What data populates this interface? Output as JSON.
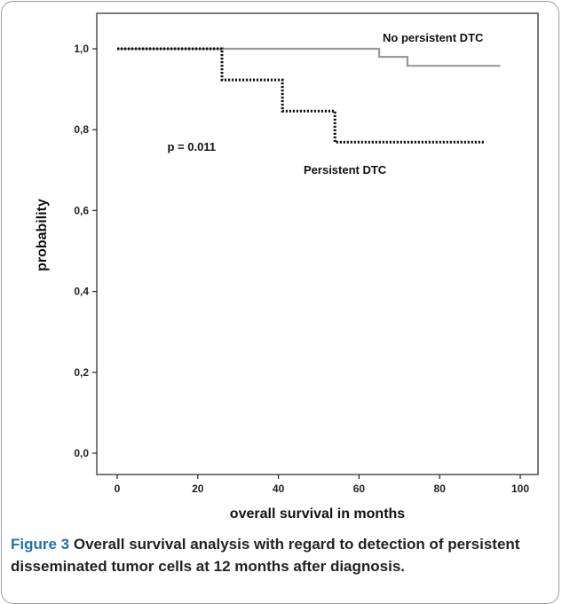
{
  "chart_data": {
    "type": "line",
    "step": true,
    "xlabel": "overall survival in months",
    "ylabel": "probability",
    "xlim": [
      0,
      100
    ],
    "ylim": [
      0.0,
      1.0
    ],
    "xticks": [
      "0",
      "20",
      "40",
      "60",
      "80",
      "100"
    ],
    "yticks": [
      "0,0",
      "0,2",
      "0,4",
      "0,6",
      "0,8",
      "1,0"
    ],
    "grid": false,
    "series": [
      {
        "name": "No persistent DTC",
        "style": "solid",
        "color": "#9a9a9a",
        "x": [
          0,
          65,
          65,
          72,
          72,
          95
        ],
        "y": [
          1.0,
          1.0,
          0.98,
          0.98,
          0.958,
          0.958
        ]
      },
      {
        "name": "Persistent DTC",
        "style": "dotted",
        "color": "#111111",
        "x": [
          0,
          26,
          26,
          41,
          41,
          54,
          54,
          91
        ],
        "y": [
          1.0,
          1.0,
          0.923,
          0.923,
          0.846,
          0.846,
          0.769,
          0.769
        ]
      }
    ],
    "annotations": [
      {
        "text": "p = 0.011",
        "x": 12,
        "y": 0.7
      }
    ]
  },
  "caption": {
    "label": "Figure 3",
    "text": " Overall survival analysis with regard to detection of persistent disseminated tumor cells at 12 months after diagnosis."
  }
}
